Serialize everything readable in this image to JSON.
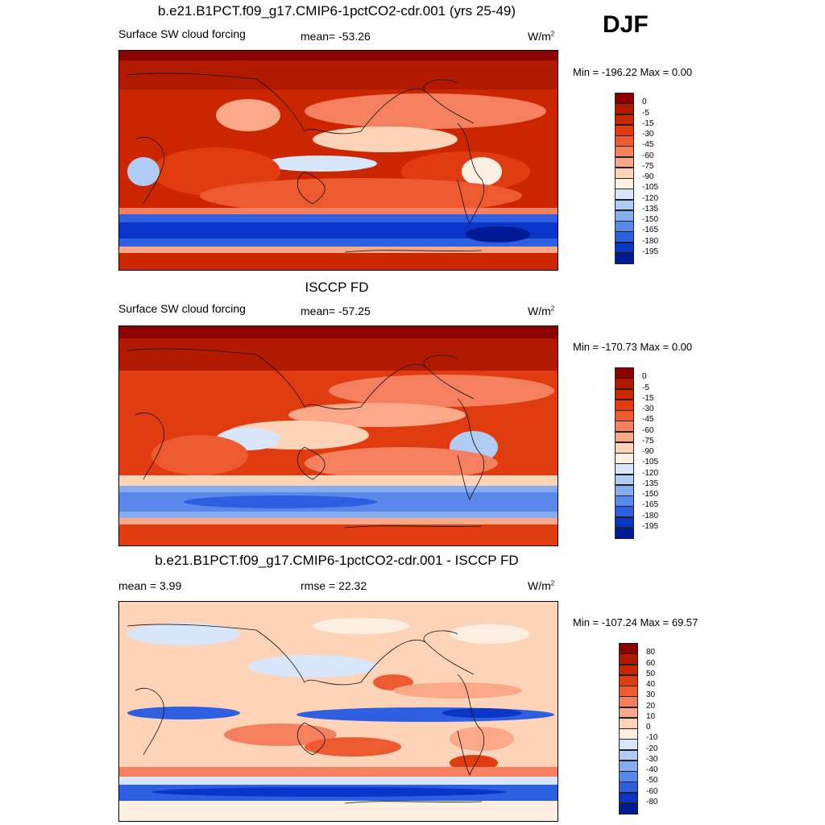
{
  "season": "DJF",
  "units_main": "W/m",
  "units_sup": "2",
  "panels": [
    {
      "title": "b.e21.B1PCT.f09_g17.CMIP6-1pctCO2-cdr.001 (yrs 25-49)",
      "left_label": "Surface SW cloud forcing",
      "mid_label": "mean= -53.26",
      "minmax": "Min = -196.22 Max =    0.00",
      "colorbar": "abs"
    },
    {
      "title": "ISCCP FD",
      "left_label": "Surface SW cloud forcing",
      "mid_label": "mean= -57.25",
      "minmax": "Min = -170.73 Max =    0.00",
      "colorbar": "abs"
    },
    {
      "title": "b.e21.B1PCT.f09_g17.CMIP6-1pctCO2-cdr.001 - ISCCP FD",
      "left_label": "mean =   3.99",
      "mid_label": "rmse =  22.32",
      "minmax": "Min = -107.24 Max =  69.57",
      "colorbar": "diff"
    }
  ],
  "colorbars": {
    "abs": {
      "labels": [
        "0",
        "-5",
        "-15",
        "-30",
        "-45",
        "-60",
        "-75",
        "-90",
        "-105",
        "-120",
        "-135",
        "-150",
        "-165",
        "-180",
        "-195"
      ],
      "colors": [
        "#8b0000",
        "#b21a00",
        "#cc2600",
        "#e03c10",
        "#ee5a30",
        "#f58060",
        "#fba888",
        "#fed3b8",
        "#fdf0e2",
        "#d8e6fb",
        "#b0ccf5",
        "#86adf0",
        "#5a88ea",
        "#2e5fe0",
        "#0a35c8",
        "#001a96"
      ]
    },
    "diff": {
      "labels": [
        "80",
        "60",
        "50",
        "40",
        "30",
        "20",
        "10",
        "0",
        "-10",
        "-20",
        "-30",
        "-40",
        "-50",
        "-60",
        "-80"
      ],
      "colors": [
        "#8b0000",
        "#b21a00",
        "#cc2600",
        "#e03c10",
        "#ee5a30",
        "#f58060",
        "#fba888",
        "#fed3b8",
        "#fdf0e2",
        "#d8e6fb",
        "#b0ccf5",
        "#86adf0",
        "#5a88ea",
        "#2e5fe0",
        "#0a35c8",
        "#001a96"
      ]
    }
  }
}
